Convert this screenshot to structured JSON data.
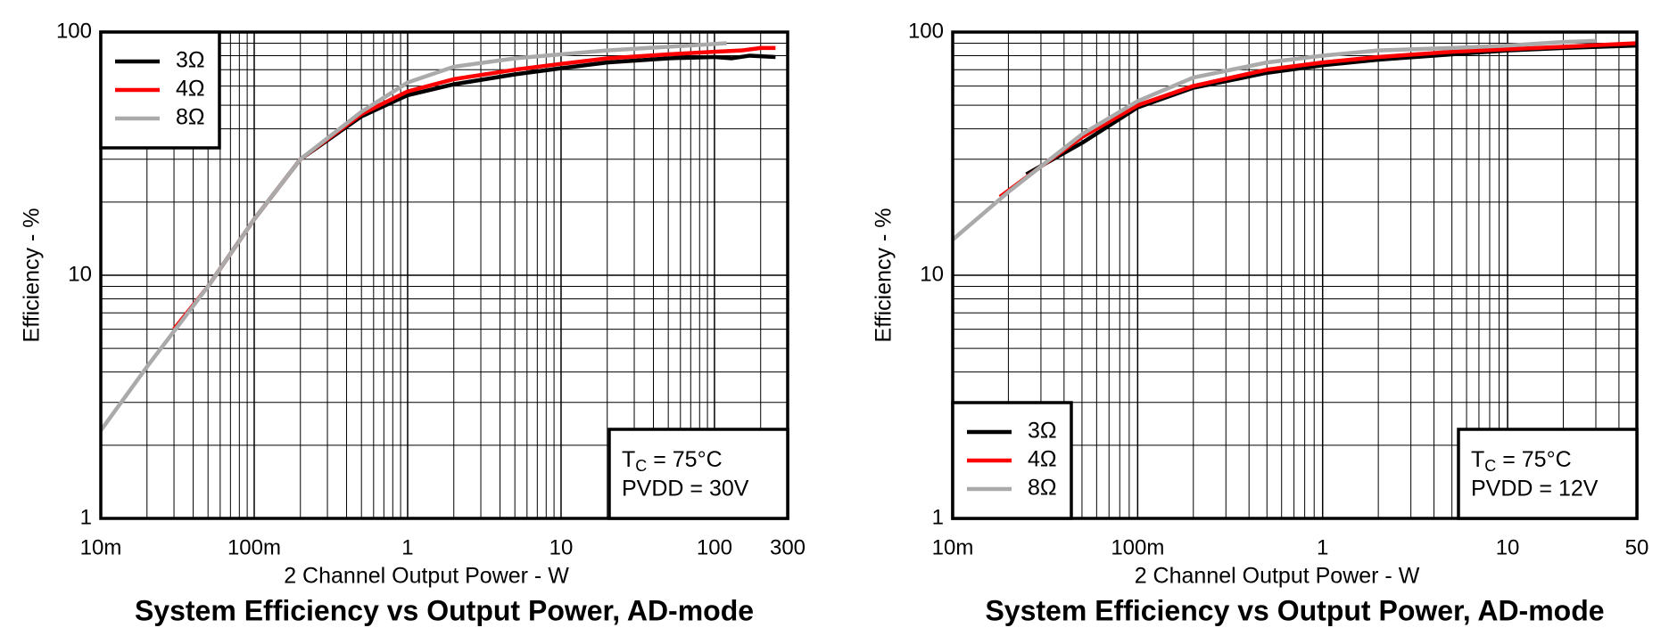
{
  "chart_data": [
    {
      "type": "line",
      "title": "System Efficiency vs Output Power, AD-mode",
      "xlabel": "2 Channel Output Power - W",
      "ylabel": "Efficiency - %",
      "xscale": "log",
      "yscale": "log",
      "grid": true,
      "minor_grid": true,
      "legend": "upper left",
      "xlim": [
        0.01,
        300
      ],
      "ylim": [
        1,
        100
      ],
      "xticks": [
        {
          "value": 0.01,
          "label": "10m"
        },
        {
          "value": 0.1,
          "label": "100m"
        },
        1,
        10,
        100,
        300
      ],
      "yticks": [
        1,
        10,
        100
      ],
      "condition": {
        "symbol": "T",
        "subscript": "C",
        "text": " = 75°C"
      },
      "supply": "PVDD = 30V",
      "series": [
        {
          "name": "3Ω",
          "color": "#000000",
          "x": [
            0.05,
            0.1,
            0.2,
            0.5,
            1,
            2,
            5,
            10,
            20,
            50,
            100,
            130,
            170,
            250
          ],
          "values": [
            9,
            17,
            30,
            45,
            55,
            61,
            67,
            71,
            75,
            78,
            79,
            78,
            80,
            79
          ]
        },
        {
          "name": "4Ω",
          "color": "#ff0000",
          "x": [
            0.03,
            0.05,
            0.1,
            0.2,
            0.5,
            1,
            2,
            5,
            10,
            20,
            50,
            100,
            150,
            200,
            250
          ],
          "values": [
            6,
            9,
            17,
            30,
            46,
            57,
            64,
            70,
            74,
            78,
            81,
            83,
            84,
            86,
            86
          ]
        },
        {
          "name": "8Ω",
          "color": "#aaaaaa",
          "x": [
            0.01,
            0.02,
            0.05,
            0.1,
            0.2,
            0.5,
            1,
            2,
            5,
            10,
            20,
            50,
            120
          ],
          "values": [
            2.3,
            4.2,
            9,
            17,
            30,
            47,
            62,
            72,
            78,
            81,
            84,
            87,
            90
          ]
        }
      ]
    },
    {
      "type": "line",
      "title": "System Efficiency vs Output Power, AD-mode",
      "xlabel": "2 Channel Output Power - W",
      "ylabel": "Efficiency - %",
      "xscale": "log",
      "yscale": "log",
      "grid": true,
      "minor_grid": true,
      "legend": "lower left",
      "xlim": [
        0.01,
        50
      ],
      "ylim": [
        1,
        100
      ],
      "xticks": [
        {
          "value": 0.01,
          "label": "10m"
        },
        {
          "value": 0.1,
          "label": "100m"
        },
        1,
        10,
        50
      ],
      "yticks": [
        1,
        10,
        100
      ],
      "condition": {
        "symbol": "T",
        "subscript": "C",
        "text": " = 75°C"
      },
      "supply": "PVDD = 12V",
      "series": [
        {
          "name": "3Ω",
          "color": "#000000",
          "x": [
            0.025,
            0.05,
            0.1,
            0.2,
            0.5,
            1,
            2,
            5,
            10,
            20,
            50
          ],
          "values": [
            26,
            35,
            49,
            59,
            68,
            73,
            77,
            81,
            84,
            86,
            88
          ]
        },
        {
          "name": "4Ω",
          "color": "#ff0000",
          "x": [
            0.018,
            0.03,
            0.05,
            0.1,
            0.2,
            0.5,
            1,
            2,
            5,
            10,
            20,
            50
          ],
          "values": [
            21,
            28,
            37,
            50,
            60,
            70,
            75,
            79,
            83,
            85,
            87,
            90
          ]
        },
        {
          "name": "8Ω",
          "color": "#aaaaaa",
          "x": [
            0.01,
            0.02,
            0.05,
            0.1,
            0.2,
            0.5,
            1,
            2,
            5,
            10,
            20,
            30
          ],
          "values": [
            14,
            22,
            38,
            52,
            65,
            75,
            80,
            84,
            86,
            88,
            91,
            92
          ]
        }
      ]
    }
  ]
}
